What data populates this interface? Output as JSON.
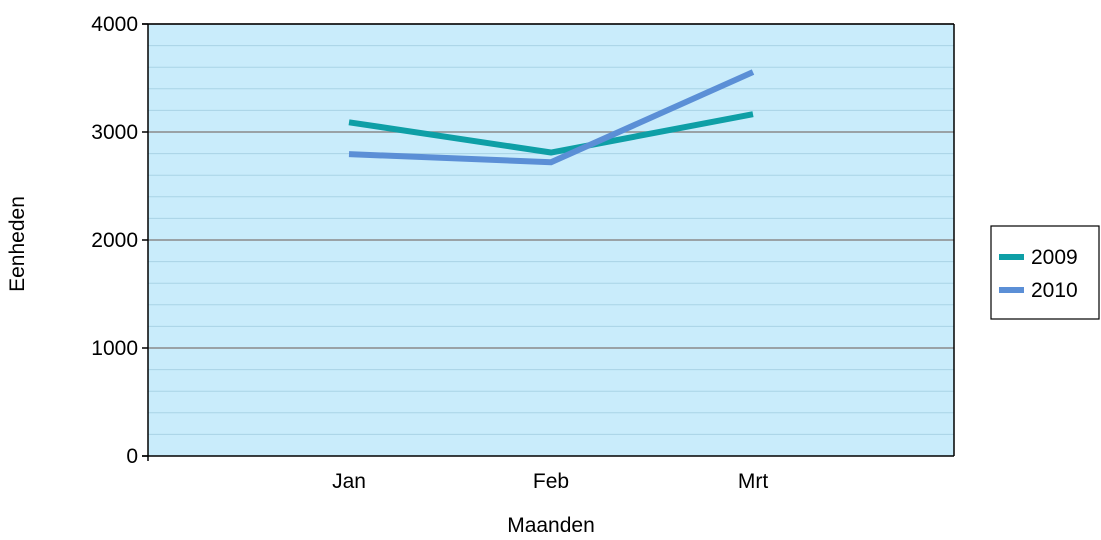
{
  "chart_data": {
    "type": "line",
    "categories": [
      "Jan",
      "Feb",
      "Mrt"
    ],
    "series": [
      {
        "name": "2009",
        "values": [
          3090,
          2810,
          3165
        ],
        "color": "#0e9fa6"
      },
      {
        "name": "2010",
        "values": [
          2795,
          2720,
          3555
        ],
        "color": "#5b8fd6"
      }
    ],
    "xlabel": "Maanden",
    "ylabel": "Eenheden",
    "ylim": [
      0,
      4000
    ],
    "yticks": [
      0,
      1000,
      2000,
      3000,
      4000
    ],
    "ytick_labels": [
      "0",
      "1000",
      "2000",
      "3000",
      "4000"
    ],
    "minor_gridlines": true,
    "grid": true,
    "legend_position": "right",
    "colors": {
      "plot_background": "#c9ecfb",
      "major_grid": "#8a8a8a",
      "minor_grid": "#a9d3e6"
    }
  }
}
